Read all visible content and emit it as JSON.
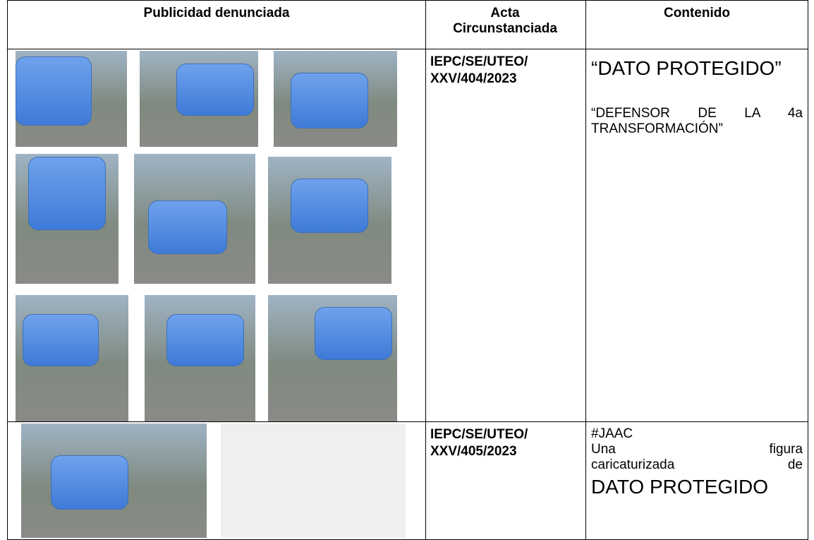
{
  "table": {
    "header": [
      "Publicidad denunciada",
      "Acta Circunstanciada",
      "Contenido"
    ],
    "rows": [
      {
        "acta": "IEPC/SE/UTEO/ XXV/404/2023",
        "contenido": {
          "big": "“DATO PROTEGIDO”",
          "small": "“DEFENSOR DE LA 4a TRANSFORMACIÓN”"
        }
      },
      {
        "acta": "IEPC/SE/UTEO/ XXV/405/2023",
        "contenido": {
          "tag": "#JAAC",
          "lines": [
            "Una figura",
            "caricaturizada de"
          ],
          "big": "DATO PROTEGIDO"
        }
      }
    ]
  }
}
